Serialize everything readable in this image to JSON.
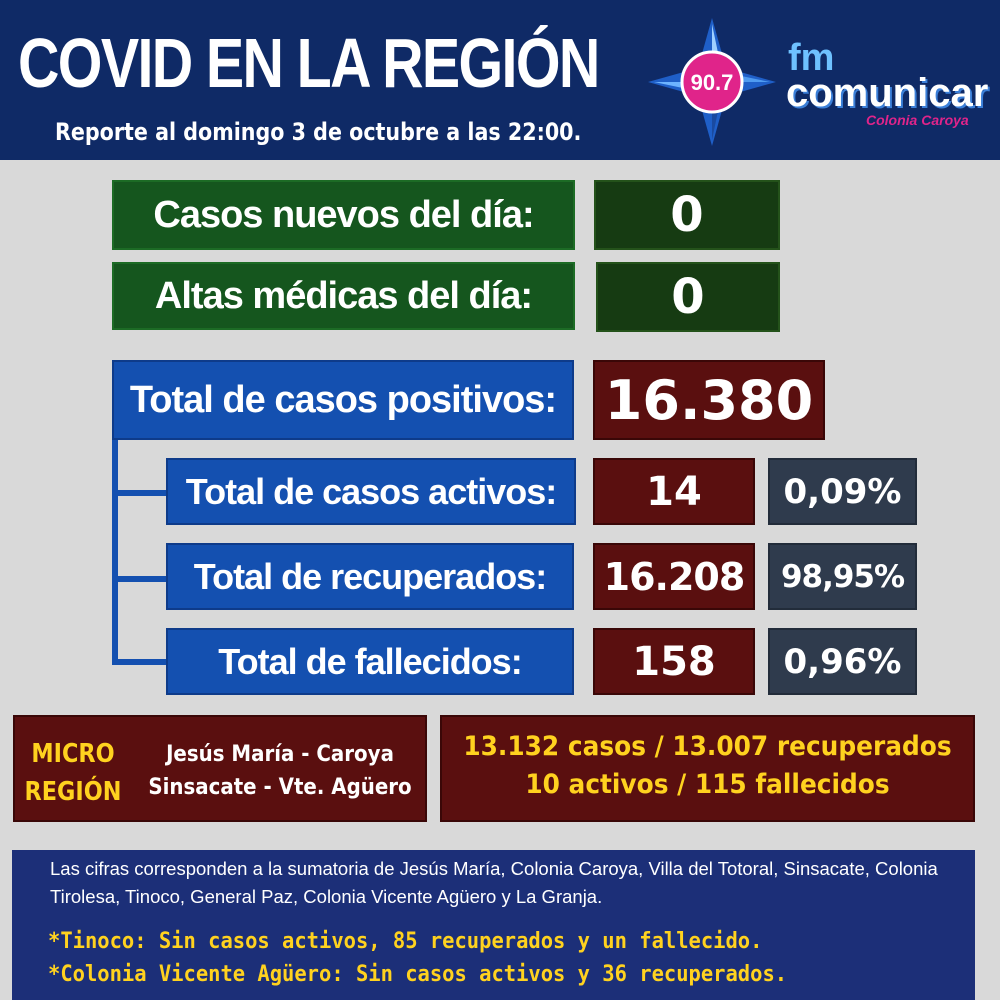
{
  "header": {
    "title": "COVID EN LA REGIÓN",
    "subtitle": "Reporte al domingo 3 de octubre a las 22:00."
  },
  "logo": {
    "frequency": "90.7",
    "fm": "fm",
    "name": "comunicar",
    "town": "Colonia Caroya"
  },
  "daily": {
    "new_cases_label": "Casos nuevos del día:",
    "new_cases_value": "0",
    "discharges_label": "Altas médicas del día:",
    "discharges_value": "0"
  },
  "totals": {
    "positive_label": "Total de casos positivos:",
    "positive_value": "16.380",
    "active_label": "Total de casos activos:",
    "active_value": "14",
    "active_pct": "0,09%",
    "recovered_label": "Total de recuperados:",
    "recovered_value": "16.208",
    "recovered_pct": "98,95%",
    "deaths_label": "Total de fallecidos:",
    "deaths_value": "158",
    "deaths_pct": "0,96%"
  },
  "micro_region": {
    "title_line1": "MICRO",
    "title_line2": "REGIÓN",
    "towns_line1": "Jesús María - Caroya",
    "towns_line2": "Sinsacate - Vte. Agüero",
    "stats_line1": "13.132 casos / 13.007 recuperados",
    "stats_line2": "10 activos  / 115 fallecidos"
  },
  "footer": {
    "note": "Las cifras corresponden a la sumatoria de Jesús María, Colonia Caroya, Villa del Totoral, Sinsacate, Colonia Tirolesa, Tinoco, General Paz, Colonia Vicente Agüero  y La Granja.",
    "line1": "*Tinoco: Sin casos activos, 85 recuperados y un fallecido.",
    "line2": "*Colonia Vicente Agüero: Sin casos activos y 36 recuperados."
  },
  "colors": {
    "header_bg": "#0f2a66",
    "page_bg": "#d9d9d9",
    "green": "#15561e",
    "blue": "#1450b0",
    "maroon": "#5a0f0f",
    "slate": "#2f3b4d",
    "yellow": "#ffd21f",
    "logo_pink": "#e0248a"
  }
}
